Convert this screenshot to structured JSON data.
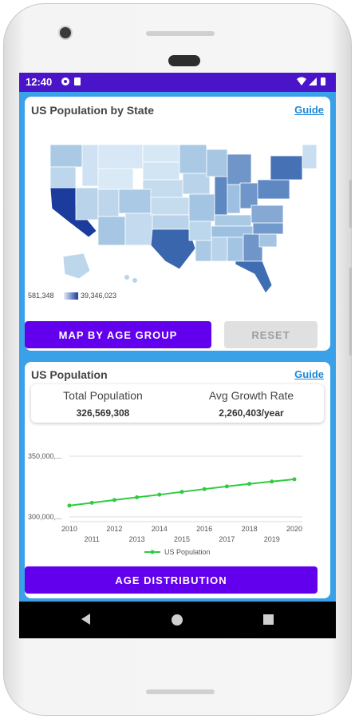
{
  "status_bar": {
    "time": "12:40",
    "left_icons": [
      "sync-icon",
      "sim-card-icon"
    ],
    "right_icons": [
      "wifi-icon",
      "signal-icon",
      "battery-icon"
    ]
  },
  "map_card": {
    "title": "US Population by State",
    "guide_label": "Guide",
    "legend_min": "581,348",
    "legend_max": "39,346,023",
    "primary_button": "MAP BY AGE GROUP",
    "reset_button": "RESET"
  },
  "population_card": {
    "title": "US Population",
    "guide_label": "Guide",
    "total_label": "Total Population",
    "total_value": "326,569,308",
    "growth_label": "Avg Growth Rate",
    "growth_value": "2,260,403/year",
    "button": "AGE DISTRIBUTION"
  },
  "colors": {
    "status_bar": "#4a14c9",
    "screen_bg": "#3aa0e8",
    "button_primary": "#6200ee",
    "series_line": "#2ecc40",
    "guide_link": "#1e88d8"
  },
  "chart_data": {
    "type": "line",
    "x": [
      2010,
      2011,
      2012,
      2013,
      2014,
      2015,
      2016,
      2017,
      2018,
      2019,
      2020
    ],
    "y_tick_labels": [
      "350,000,...",
      "300,000,..."
    ],
    "y_ticks": [
      350000000,
      300000000
    ],
    "ylim": [
      300000000,
      350000000
    ],
    "series": [
      {
        "name": "US Population",
        "values": [
          309300000,
          311600000,
          313900000,
          316100000,
          318300000,
          320600000,
          322900000,
          325100000,
          327200000,
          329100000,
          331000000
        ]
      }
    ],
    "legend": "bottom"
  }
}
